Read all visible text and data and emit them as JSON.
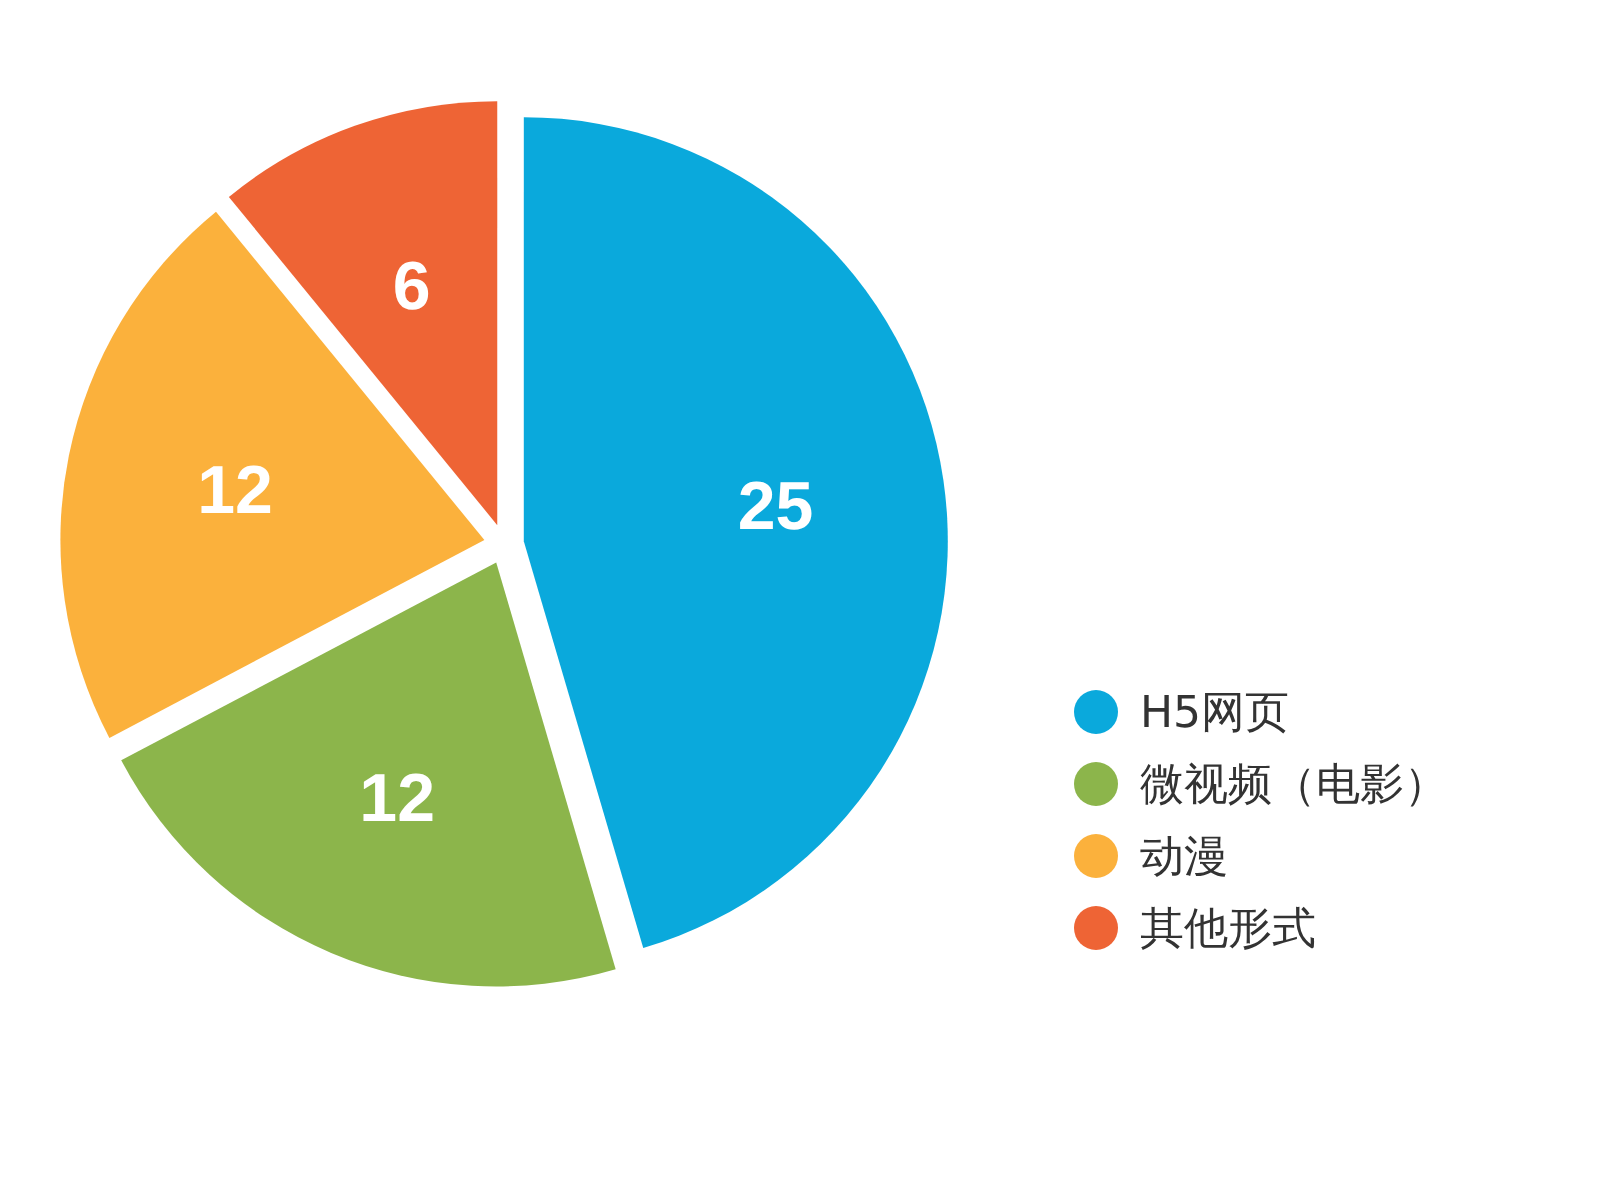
{
  "chart_data": {
    "type": "pie",
    "categories": [
      "H5网页",
      "微视频（电影）",
      "动漫",
      "其他形式"
    ],
    "values": [
      25,
      12,
      12,
      6
    ],
    "colors": [
      "#0aa9dc",
      "#8cb54b",
      "#fbb13c",
      "#ee6435"
    ],
    "data_labels": true,
    "legend": "right"
  }
}
